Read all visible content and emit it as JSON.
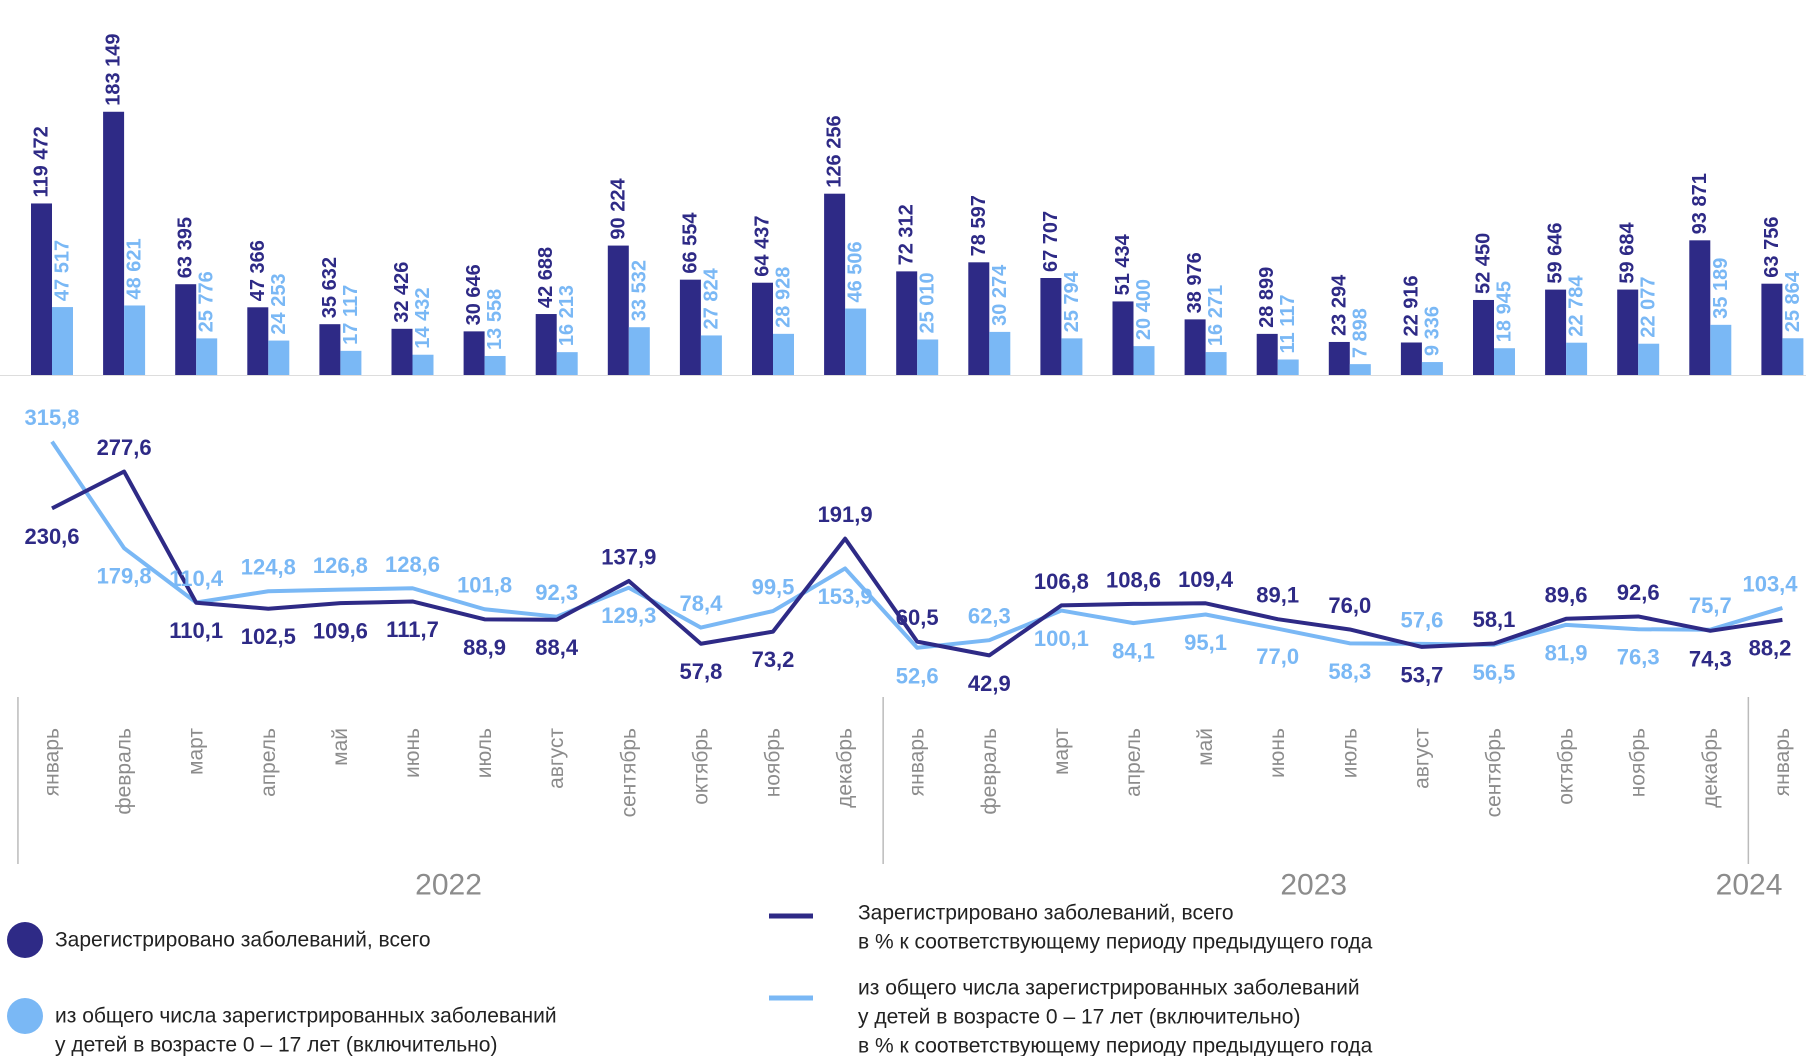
{
  "chart_data": {
    "type": "bar",
    "groups": [
      {
        "label": "2022",
        "categories": [
          "январь",
          "февраль",
          "март",
          "апрель",
          "май",
          "июнь",
          "июль",
          "август",
          "сентябрь",
          "октябрь",
          "ноябрь",
          "декабрь"
        ]
      },
      {
        "label": "2023",
        "categories": [
          "январь",
          "февраль",
          "март",
          "апрель",
          "май",
          "июнь",
          "июль",
          "август",
          "сентябрь",
          "октябрь",
          "ноябрь",
          "декабрь"
        ]
      },
      {
        "label": "2024",
        "categories": [
          "январь"
        ]
      }
    ],
    "ylim": [
      0,
      250000
    ],
    "y2lim": [
      0,
      500
    ],
    "series": [
      {
        "type": "bar",
        "name": [
          "Зарегистрировано заболеваний, всего"
        ],
        "color": "#2e2a86",
        "values": [
          119472,
          183149,
          63395,
          47366,
          35632,
          32426,
          30646,
          42688,
          90224,
          66554,
          64437,
          126256,
          72312,
          78597,
          67707,
          51434,
          38976,
          28899,
          23294,
          22916,
          52450,
          59646,
          59684,
          93871,
          63756
        ],
        "value_labels": [
          "119 472",
          "183 149",
          "63 395",
          "47 366",
          "35 632",
          "32 426",
          "30 646",
          "42 688",
          "90 224",
          "66 554",
          "64 437",
          "126 256",
          "72 312",
          "78 597",
          "67 707",
          "51 434",
          "38 976",
          "28 899",
          "23 294",
          "22 916",
          "52 450",
          "59 646",
          "59 684",
          "93 871",
          "63 756"
        ]
      },
      {
        "type": "bar",
        "name": [
          "из общего числа зарегистрированных заболеваний",
          "у детей в возрасте 0 – 17 лет (включительно)"
        ],
        "color": "#7ab8f5",
        "values": [
          47517,
          48621,
          25776,
          24253,
          17117,
          14432,
          13558,
          16213,
          33532,
          27824,
          28928,
          46506,
          25010,
          30274,
          25794,
          20400,
          16271,
          11117,
          7898,
          9336,
          18945,
          22784,
          22077,
          35189,
          25864
        ],
        "value_labels": [
          "47 517",
          "48 621",
          "25 776",
          "24 253",
          "17 117",
          "14 432",
          "13 558",
          "16 213",
          "33 532",
          "27 824",
          "28 928",
          "46 506",
          "25 010",
          "30 274",
          "25 794",
          "20 400",
          "16 271",
          "11 117",
          "7 898",
          "9 336",
          "18 945",
          "22 784",
          "22 077",
          "35 189",
          "25 864"
        ]
      },
      {
        "type": "line",
        "axis": "y2",
        "name": [
          "Зарегистрировано заболеваний, всего",
          "в % к соответствующему периоду предыдущего года"
        ],
        "color": "#2e2a86",
        "values": [
          230.6,
          277.6,
          110.1,
          102.5,
          109.6,
          111.7,
          88.9,
          88.4,
          137.9,
          57.8,
          73.2,
          191.9,
          60.5,
          42.9,
          106.8,
          108.6,
          109.4,
          89.1,
          76.0,
          53.7,
          58.1,
          89.6,
          92.6,
          74.3,
          88.2
        ],
        "value_labels": [
          "230,6",
          "277,6",
          "110,1",
          "102,5",
          "109,6",
          "111,7",
          "88,9",
          "88,4",
          "137,9",
          "57,8",
          "73,2",
          "191,9",
          "60,5",
          "42,9",
          "106,8",
          "108,6",
          "109,4",
          "89,1",
          "76,0",
          "53,7",
          "58,1",
          "89,6",
          "92,6",
          "74,3",
          "88,2"
        ]
      },
      {
        "type": "line",
        "axis": "y2",
        "name": [
          "из общего числа зарегистрированных заболеваний",
          "у детей в возрасте 0 – 17 лет (включительно)",
          "в % к соответствующему периоду предыдущего года"
        ],
        "color": "#7ab8f5",
        "values": [
          315.8,
          179.8,
          110.4,
          124.8,
          126.8,
          128.6,
          101.8,
          92.3,
          129.3,
          78.4,
          99.5,
          153.9,
          52.6,
          62.3,
          100.1,
          84.1,
          95.1,
          77.0,
          58.3,
          57.6,
          56.5,
          81.9,
          76.3,
          75.7,
          103.4
        ],
        "value_labels": [
          "315,8",
          "179,8",
          "110,4",
          "124,8",
          "126,8",
          "128,6",
          "101,8",
          "92,3",
          "129,3",
          "78,4",
          "99,5",
          "153,9",
          "52,6",
          "62,3",
          "100,1",
          "84,1",
          "95,1",
          "77,0",
          "58,3",
          "57,6",
          "56,5",
          "81,9",
          "76,3",
          "75,7",
          "103,4"
        ]
      }
    ]
  }
}
